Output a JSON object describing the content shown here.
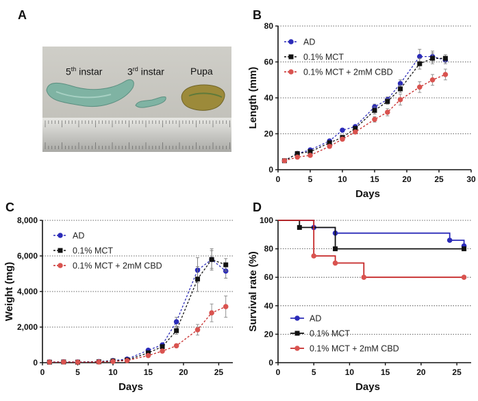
{
  "panels": {
    "A": "A",
    "B": "B",
    "C": "C",
    "D": "D"
  },
  "photo": {
    "labels": [
      {
        "main": "5",
        "sup": "th",
        "rest": " instar"
      },
      {
        "main": "3",
        "sup": "rd",
        "rest": " instar"
      },
      {
        "main": "Pupa",
        "sup": "",
        "rest": ""
      }
    ]
  },
  "colors": {
    "AD": "#2b2bb8",
    "MCT": "#111111",
    "CBD": "#d9534f",
    "CBD_line": "#c62828"
  },
  "chart_data": [
    {
      "id": "B",
      "type": "line",
      "xlabel": "Days",
      "ylabel": "Length (mm)",
      "xlim": [
        0,
        30
      ],
      "ylim": [
        0,
        80
      ],
      "xticks": [
        0,
        5,
        10,
        15,
        20,
        25,
        30
      ],
      "yticks": [
        0,
        20,
        40,
        60,
        80
      ],
      "grid": "horizontal dotted",
      "legend": "top-left",
      "series": [
        {
          "name": "AD",
          "x": [
            1,
            3,
            5,
            8,
            10,
            12,
            15,
            17,
            19,
            22,
            24,
            26
          ],
          "y": [
            5,
            9,
            11,
            16,
            22,
            24,
            35,
            39,
            48,
            63,
            63,
            61
          ],
          "err": [
            1,
            1,
            1,
            1,
            1,
            1,
            1.5,
            1.5,
            2,
            4,
            3,
            2
          ]
        },
        {
          "name": "0.1% MCT",
          "x": [
            1,
            3,
            5,
            8,
            10,
            12,
            15,
            17,
            19,
            22,
            24,
            26
          ],
          "y": [
            5,
            9,
            10,
            15,
            18,
            23,
            33,
            38,
            45,
            59,
            62,
            62
          ],
          "err": [
            1,
            1,
            1,
            1,
            1,
            1,
            2,
            1.5,
            2,
            3,
            3,
            2
          ]
        },
        {
          "name": "0.1% MCT + 2mM CBD",
          "x": [
            1,
            3,
            5,
            8,
            10,
            12,
            15,
            17,
            19,
            22,
            24,
            26
          ],
          "y": [
            5,
            7,
            8,
            13,
            17,
            21,
            28,
            32,
            39,
            46,
            50,
            53
          ],
          "err": [
            1,
            1,
            1,
            1,
            1,
            1,
            1.5,
            2,
            3,
            3,
            3,
            3
          ]
        }
      ]
    },
    {
      "id": "C",
      "type": "line",
      "xlabel": "Days",
      "ylabel": "Weight (mg)",
      "xlim": [
        0,
        27
      ],
      "ylim": [
        0,
        8000
      ],
      "xticks": [
        0,
        5,
        10,
        15,
        20,
        25
      ],
      "ytick_labels": [
        "0",
        "2,000",
        "4,000",
        "6,000",
        "8,000"
      ],
      "yticks": [
        0,
        2000,
        4000,
        6000,
        8000
      ],
      "grid": "horizontal dotted",
      "legend": "top-left",
      "series": [
        {
          "name": "AD",
          "x": [
            1,
            3,
            5,
            8,
            10,
            12,
            15,
            17,
            19,
            22,
            24,
            26
          ],
          "y": [
            40,
            50,
            40,
            60,
            120,
            200,
            700,
            1000,
            2300,
            5200,
            5800,
            5150
          ],
          "err": [
            10,
            10,
            10,
            10,
            20,
            30,
            80,
            100,
            250,
            700,
            600,
            400
          ]
        },
        {
          "name": "0.1% MCT",
          "x": [
            1,
            3,
            5,
            8,
            10,
            12,
            15,
            17,
            19,
            22,
            24,
            26
          ],
          "y": [
            30,
            40,
            30,
            50,
            100,
            150,
            550,
            900,
            1800,
            4700,
            5800,
            5500
          ],
          "err": [
            10,
            10,
            10,
            10,
            20,
            30,
            80,
            100,
            200,
            700,
            500,
            350
          ]
        },
        {
          "name": "0.1% MCT + 2mM CBD",
          "x": [
            1,
            3,
            5,
            8,
            10,
            12,
            15,
            17,
            19,
            22,
            24,
            26
          ],
          "y": [
            30,
            40,
            30,
            40,
            70,
            120,
            400,
            650,
            950,
            1850,
            2800,
            3150
          ],
          "err": [
            10,
            10,
            10,
            10,
            15,
            20,
            50,
            60,
            100,
            300,
            500,
            600
          ]
        }
      ]
    },
    {
      "id": "D",
      "type": "line",
      "xlabel": "Days",
      "ylabel": "Survival rate (%)",
      "xlim": [
        0,
        27
      ],
      "ylim": [
        0,
        100
      ],
      "xticks": [
        0,
        5,
        10,
        15,
        20,
        25
      ],
      "yticks": [
        0,
        20,
        40,
        60,
        80,
        100
      ],
      "grid": "horizontal dotted",
      "legend": "bottom-left",
      "series": [
        {
          "name": "AD",
          "steps": [
            [
              0,
              100
            ],
            [
              5,
              100
            ],
            [
              5,
              95
            ],
            [
              8,
              95
            ],
            [
              8,
              91
            ],
            [
              24,
              91
            ],
            [
              24,
              86
            ],
            [
              26,
              86
            ],
            [
              26,
              82
            ]
          ],
          "markers": [
            [
              5,
              95
            ],
            [
              8,
              91
            ],
            [
              24,
              86
            ],
            [
              26,
              82
            ]
          ]
        },
        {
          "name": "0.1% MCT",
          "steps": [
            [
              0,
              100
            ],
            [
              3,
              100
            ],
            [
              3,
              95
            ],
            [
              8,
              95
            ],
            [
              8,
              80
            ],
            [
              26,
              80
            ]
          ],
          "markers": [
            [
              3,
              95
            ],
            [
              8,
              80
            ],
            [
              26,
              80
            ]
          ]
        },
        {
          "name": "0.1% MCT + 2mM CBD",
          "steps": [
            [
              0,
              100
            ],
            [
              5,
              100
            ],
            [
              5,
              75
            ],
            [
              8,
              75
            ],
            [
              8,
              70
            ],
            [
              12,
              70
            ],
            [
              12,
              60
            ],
            [
              26,
              60
            ]
          ],
          "markers": [
            [
              5,
              75
            ],
            [
              8,
              70
            ],
            [
              12,
              60
            ],
            [
              26,
              60
            ]
          ]
        }
      ]
    }
  ]
}
